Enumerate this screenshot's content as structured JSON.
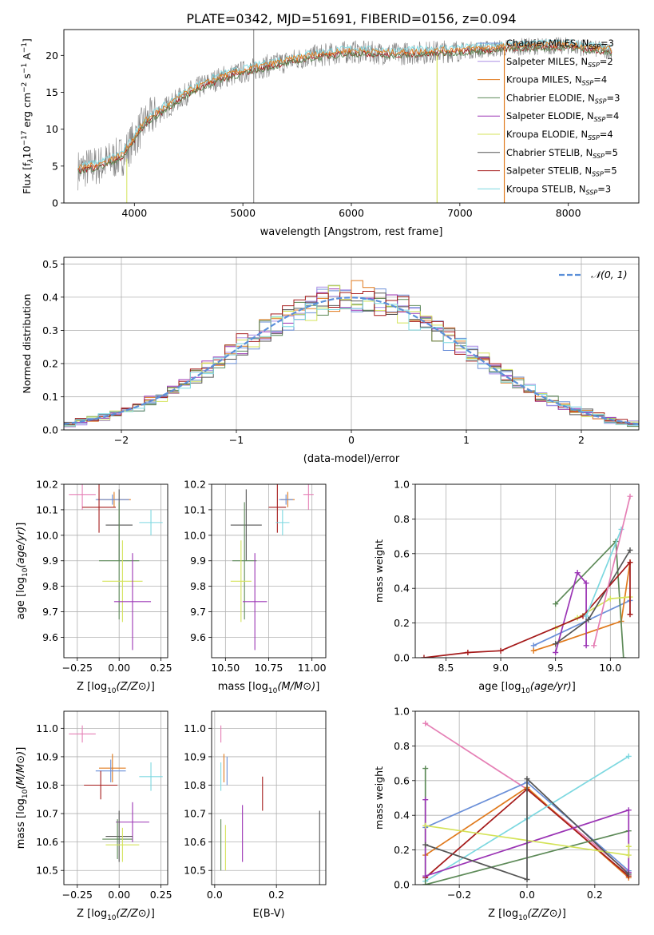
{
  "title": "PLATE=0342, MJD=51691, FIBERID=0156, z=0.094",
  "colors": {
    "Chabrier MILES": "#6a8fd8",
    "Salpeter MILES": "#aa8ee6",
    "Kroupa MILES": "#e07a1d",
    "Chabrier ELODIE": "#5d8a58",
    "Salpeter ELODIE": "#9b35b5",
    "Kroupa ELODIE": "#d4e35a",
    "Chabrier STELIB": "#555555",
    "Salpeter STELIB": "#a51b1b",
    "Kroupa STELIB": "#7dd8e0",
    "Pink": "#e57fb5"
  },
  "legend_spectrum": [
    {
      "label": "Chabrier MILES, N",
      "sub": "SSP",
      "tail": "=3",
      "color_key": "Chabrier MILES"
    },
    {
      "label": "Salpeter MILES, N",
      "sub": "SSP",
      "tail": "=2",
      "color_key": "Salpeter MILES"
    },
    {
      "label": "Kroupa MILES, N",
      "sub": "SSP",
      "tail": "=4",
      "color_key": "Kroupa MILES"
    },
    {
      "label": "Chabrier ELODIE, N",
      "sub": "SSP",
      "tail": "=3",
      "color_key": "Chabrier ELODIE"
    },
    {
      "label": "Salpeter ELODIE, N",
      "sub": "SSP",
      "tail": "=4",
      "color_key": "Salpeter ELODIE"
    },
    {
      "label": "Kroupa ELODIE, N",
      "sub": "SSP",
      "tail": "=4",
      "color_key": "Kroupa ELODIE"
    },
    {
      "label": "Chabrier STELIB, N",
      "sub": "SSP",
      "tail": "=5",
      "color_key": "Chabrier STELIB"
    },
    {
      "label": "Salpeter STELIB, N",
      "sub": "SSP",
      "tail": "=5",
      "color_key": "Salpeter STELIB"
    },
    {
      "label": "Kroupa STELIB, N",
      "sub": "SSP",
      "tail": "=3",
      "color_key": "Kroupa STELIB"
    }
  ],
  "legend_hist": "𝒩(0, 1)",
  "chart_data": [
    {
      "id": "spectrum",
      "type": "line",
      "ylabel_main": "Flux [f",
      "ylabel_sub": "λ",
      "ylabel_mid": "10",
      "ylabel_sup1": "−17",
      "ylabel_mid2": " erg cm",
      "ylabel_sup2": "−2",
      "ylabel_mid3": " s",
      "ylabel_sup3": "−1",
      "ylabel_mid4": " A",
      "ylabel_sup4": "−1",
      "ylabel_end": "]",
      "xlabel": "wavelength [Angstrom, rest frame]",
      "xlim": [
        3350,
        8650
      ],
      "ylim": [
        0,
        23.5
      ],
      "xticks": [
        4000,
        5000,
        6000,
        7000,
        8000
      ],
      "yticks": [
        0,
        5,
        10,
        15,
        20
      ],
      "continuum": [
        [
          3480,
          4.5
        ],
        [
          3700,
          5.2
        ],
        [
          3900,
          6.5
        ],
        [
          4100,
          11
        ],
        [
          4300,
          13
        ],
        [
          4500,
          15
        ],
        [
          4800,
          17
        ],
        [
          5200,
          18.5
        ],
        [
          5600,
          19.8
        ],
        [
          6000,
          20.5
        ],
        [
          6400,
          20.2
        ],
        [
          6800,
          20.5
        ],
        [
          7200,
          20.8
        ],
        [
          7600,
          21.2
        ],
        [
          8000,
          21.3
        ],
        [
          8400,
          20.6
        ]
      ],
      "spikes": [
        [
          5100,
          23.5
        ],
        [
          6790,
          0
        ],
        [
          7410,
          0
        ],
        [
          3980,
          0
        ],
        [
          3920,
          0
        ],
        [
          6075,
          2
        ]
      ]
    },
    {
      "id": "residuals",
      "type": "histogram",
      "ylabel": "Normed distribution",
      "xlabel": "(data-model)/error",
      "xlim": [
        -2.5,
        2.5
      ],
      "ylim": [
        0,
        0.52
      ],
      "xticks": [
        -2,
        -1,
        0,
        1,
        2
      ],
      "yticks": [
        0.0,
        0.1,
        0.2,
        0.3,
        0.4,
        0.5
      ],
      "bin_width": 0.1
    },
    {
      "id": "age_Z",
      "type": "scatter",
      "ylabel": "age  [log10(age/yr)]",
      "xlabel": "Z [log10(Z/Z⊙)]",
      "xlim": [
        -0.33,
        0.29
      ],
      "ylim": [
        9.52,
        10.2
      ],
      "xticks": [
        -0.25,
        0.0,
        0.25
      ],
      "yticks": [
        9.6,
        9.7,
        9.8,
        9.9,
        10.0,
        10.1,
        10.2
      ],
      "points": [
        {
          "x": -0.22,
          "y": 10.16,
          "xerr": 0.08,
          "yerr": 0.06,
          "c": "Pink"
        },
        {
          "x": -0.03,
          "y": 10.14,
          "xerr": 0.1,
          "yerr": 0.03,
          "c": "Kroupa MILES"
        },
        {
          "x": -0.04,
          "y": 10.14,
          "xerr": 0.1,
          "yerr": 0.02,
          "c": "Chabrier MILES"
        },
        {
          "x": -0.12,
          "y": 10.11,
          "xerr": 0.1,
          "yerr": 0.1,
          "c": "Salpeter STELIB"
        },
        {
          "x": 0.19,
          "y": 10.05,
          "xerr": 0.07,
          "yerr": 0.05,
          "c": "Kroupa STELIB"
        },
        {
          "x": 0.0,
          "y": 10.04,
          "xerr": 0.08,
          "yerr": 0.14,
          "c": "Chabrier STELIB"
        },
        {
          "x": 0.0,
          "y": 9.9,
          "xerr": 0.12,
          "yerr": 0.23,
          "c": "Chabrier ELODIE"
        },
        {
          "x": 0.02,
          "y": 9.82,
          "xerr": 0.12,
          "yerr": 0.16,
          "c": "Kroupa ELODIE"
        },
        {
          "x": 0.08,
          "y": 9.74,
          "xerr": 0.11,
          "yerr": 0.19,
          "c": "Salpeter ELODIE"
        }
      ]
    },
    {
      "id": "age_mass",
      "type": "scatter",
      "xlabel": "mass [log10(M/M⊙)]",
      "xlim": [
        10.42,
        11.08
      ],
      "ylim": [
        9.52,
        10.2
      ],
      "xticks": [
        10.5,
        10.75,
        11.0
      ],
      "yticks": [
        9.6,
        9.7,
        9.8,
        9.9,
        10.0,
        10.1,
        10.2
      ],
      "points": [
        {
          "x": 10.98,
          "y": 10.16,
          "xerr": 0.03,
          "yerr": 0.06,
          "c": "Pink"
        },
        {
          "x": 10.86,
          "y": 10.14,
          "xerr": 0.04,
          "yerr": 0.03,
          "c": "Kroupa MILES"
        },
        {
          "x": 10.85,
          "y": 10.14,
          "xerr": 0.04,
          "yerr": 0.02,
          "c": "Chabrier MILES"
        },
        {
          "x": 10.8,
          "y": 10.11,
          "xerr": 0.05,
          "yerr": 0.1,
          "c": "Salpeter STELIB"
        },
        {
          "x": 10.83,
          "y": 10.05,
          "xerr": 0.04,
          "yerr": 0.05,
          "c": "Kroupa STELIB"
        },
        {
          "x": 10.62,
          "y": 10.04,
          "xerr": 0.09,
          "yerr": 0.14,
          "c": "Chabrier STELIB"
        },
        {
          "x": 10.61,
          "y": 9.9,
          "xerr": 0.07,
          "yerr": 0.23,
          "c": "Chabrier ELODIE"
        },
        {
          "x": 10.59,
          "y": 9.82,
          "xerr": 0.06,
          "yerr": 0.16,
          "c": "Kroupa ELODIE"
        },
        {
          "x": 10.67,
          "y": 9.74,
          "xerr": 0.07,
          "yerr": 0.19,
          "c": "Salpeter ELODIE"
        }
      ]
    },
    {
      "id": "mw_age",
      "type": "line",
      "ylabel": "mass weight",
      "xlabel": "age  [log10(age/yr)]",
      "xlim": [
        8.22,
        10.26
      ],
      "ylim": [
        0,
        1.0
      ],
      "xticks": [
        8.5,
        9.0,
        9.5,
        10.0
      ],
      "yticks": [
        0.0,
        0.2,
        0.4,
        0.6,
        0.8,
        1.0
      ],
      "series": [
        {
          "c": "Chabrier MILES",
          "pts": [
            [
              9.3,
              0.07
            ],
            [
              10.18,
              0.33
            ]
          ]
        },
        {
          "c": "Kroupa MILES",
          "pts": [
            [
              9.3,
              0.04
            ],
            [
              9.5,
              0.08
            ],
            [
              10.1,
              0.21
            ],
            [
              10.18,
              0.55
            ]
          ]
        },
        {
          "c": "Chabrier ELODIE",
          "pts": [
            [
              9.5,
              0.31
            ],
            [
              10.05,
              0.67
            ],
            [
              10.12,
              0.0
            ]
          ]
        },
        {
          "c": "Salpeter ELODIE",
          "pts": [
            [
              9.5,
              0.03
            ],
            [
              9.7,
              0.49
            ],
            [
              9.78,
              0.43
            ],
            [
              9.78,
              0.07
            ]
          ]
        },
        {
          "c": "Kroupa ELODIE",
          "pts": [
            [
              9.5,
              0.17
            ],
            [
              9.7,
              0.23
            ],
            [
              10.0,
              0.34
            ],
            [
              10.18,
              0.35
            ]
          ]
        },
        {
          "c": "Chabrier STELIB",
          "pts": [
            [
              9.5,
              0.08
            ],
            [
              9.8,
              0.22
            ],
            [
              10.18,
              0.62
            ]
          ]
        },
        {
          "c": "Salpeter STELIB",
          "pts": [
            [
              8.3,
              0.0
            ],
            [
              8.7,
              0.03
            ],
            [
              9.0,
              0.04
            ],
            [
              9.75,
              0.24
            ],
            [
              10.18,
              0.55
            ],
            [
              10.18,
              0.25
            ]
          ]
        },
        {
          "c": "Kroupa STELIB",
          "pts": [
            [
              9.78,
              0.24
            ],
            [
              10.1,
              0.74
            ]
          ]
        },
        {
          "c": "Pink",
          "pts": [
            [
              9.85,
              0.07
            ],
            [
              10.18,
              0.93
            ]
          ]
        }
      ]
    },
    {
      "id": "mass_Z",
      "type": "scatter",
      "ylabel": "mass [log10(M/M⊙)]",
      "xlabel": "Z [log10(Z/Z⊙)]",
      "xlim": [
        -0.33,
        0.29
      ],
      "ylim": [
        10.45,
        11.06
      ],
      "xticks": [
        -0.25,
        0.0,
        0.25
      ],
      "yticks": [
        10.5,
        10.6,
        10.7,
        10.8,
        10.9,
        11.0
      ],
      "points": [
        {
          "x": -0.22,
          "y": 10.98,
          "xerr": 0.08,
          "yerr": 0.03,
          "c": "Pink"
        },
        {
          "x": -0.04,
          "y": 10.86,
          "xerr": 0.08,
          "yerr": 0.05,
          "c": "Kroupa MILES"
        },
        {
          "x": -0.05,
          "y": 10.85,
          "xerr": 0.09,
          "yerr": 0.04,
          "c": "Chabrier MILES"
        },
        {
          "x": -0.11,
          "y": 10.8,
          "xerr": 0.1,
          "yerr": 0.05,
          "c": "Salpeter STELIB"
        },
        {
          "x": 0.19,
          "y": 10.83,
          "xerr": 0.07,
          "yerr": 0.05,
          "c": "Kroupa STELIB"
        },
        {
          "x": 0.08,
          "y": 10.67,
          "xerr": 0.1,
          "yerr": 0.07,
          "c": "Salpeter ELODIE"
        },
        {
          "x": 0.0,
          "y": 10.62,
          "xerr": 0.08,
          "yerr": 0.09,
          "c": "Chabrier STELIB"
        },
        {
          "x": -0.01,
          "y": 10.61,
          "xerr": 0.09,
          "yerr": 0.07,
          "c": "Chabrier ELODIE"
        },
        {
          "x": 0.02,
          "y": 10.59,
          "xerr": 0.1,
          "yerr": 0.06,
          "c": "Kroupa ELODIE"
        }
      ]
    },
    {
      "id": "mass_ebv",
      "type": "scatter",
      "xlabel": "E(B-V)",
      "xlim": [
        -0.01,
        0.36
      ],
      "ylim": [
        10.45,
        11.06
      ],
      "xticks": [
        0.0,
        0.2
      ],
      "yticks": [
        10.5,
        10.6,
        10.7,
        10.8,
        10.9,
        11.0
      ],
      "points": [
        {
          "x": 0.02,
          "y": 10.98,
          "xerr": 0,
          "yerr": 0.03,
          "c": "Pink"
        },
        {
          "x": 0.03,
          "y": 10.86,
          "xerr": 0,
          "yerr": 0.05,
          "c": "Kroupa MILES"
        },
        {
          "x": 0.04,
          "y": 10.85,
          "xerr": 0,
          "yerr": 0.05,
          "c": "Chabrier MILES"
        },
        {
          "x": 0.02,
          "y": 10.83,
          "xerr": 0,
          "yerr": 0.05,
          "c": "Kroupa STELIB"
        },
        {
          "x": 0.155,
          "y": 10.77,
          "xerr": 0,
          "yerr": 0.06,
          "c": "Salpeter STELIB"
        },
        {
          "x": 0.09,
          "y": 10.63,
          "xerr": 0,
          "yerr": 0.1,
          "c": "Salpeter ELODIE"
        },
        {
          "x": 0.02,
          "y": 10.59,
          "xerr": 0,
          "yerr": 0.09,
          "c": "Chabrier ELODIE"
        },
        {
          "x": 0.035,
          "y": 10.58,
          "xerr": 0,
          "yerr": 0.08,
          "c": "Kroupa ELODIE"
        },
        {
          "x": 0.34,
          "y": 10.57,
          "xerr": 0,
          "yerr": 0.14,
          "c": "Chabrier STELIB"
        }
      ]
    },
    {
      "id": "mw_Z",
      "type": "line",
      "ylabel": "mass weight",
      "xlabel": "Z [log10(Z/Z⊙)]",
      "xlim": [
        -0.33,
        0.33
      ],
      "ylim": [
        0,
        1.0
      ],
      "xticks": [
        -0.2,
        0.0,
        0.2
      ],
      "yticks": [
        0.0,
        0.2,
        0.4,
        0.6,
        0.8,
        1.0
      ],
      "series": [
        {
          "c": "Pink",
          "pts": [
            [
              -0.3,
              0.93
            ],
            [
              0.0,
              0.55
            ],
            [
              0.3,
              0.07
            ]
          ]
        },
        {
          "c": "Chabrier MILES",
          "pts": [
            [
              -0.3,
              0.33
            ],
            [
              0.0,
              0.59
            ],
            [
              0.3,
              0.08
            ]
          ]
        },
        {
          "c": "Kroupa MILES",
          "pts": [
            [
              -0.3,
              0.17
            ],
            [
              0.0,
              0.56
            ],
            [
              0.3,
              0.04
            ]
          ]
        },
        {
          "c": "Salpeter STELIB",
          "pts": [
            [
              -0.3,
              0.04
            ],
            [
              0.0,
              0.55
            ],
            [
              0.3,
              0.05
            ]
          ]
        },
        {
          "c": "Kroupa STELIB",
          "pts": [
            [
              -0.3,
              0.02
            ],
            [
              0.0,
              0.38
            ],
            [
              0.3,
              0.74
            ]
          ]
        },
        {
          "c": "Chabrier ELODIE",
          "pts": [
            [
              -0.3,
              0.67
            ],
            [
              -0.3,
              0.0
            ],
            [
              0.3,
              0.31
            ]
          ]
        },
        {
          "c": "Salpeter ELODIE",
          "pts": [
            [
              -0.3,
              0.49
            ],
            [
              -0.3,
              0.05
            ],
            [
              0.3,
              0.43
            ],
            [
              0.3,
              0.07
            ]
          ]
        },
        {
          "c": "Kroupa ELODIE",
          "pts": [
            [
              -0.3,
              0.34
            ],
            [
              0.3,
              0.17
            ],
            [
              0.3,
              0.22
            ]
          ]
        },
        {
          "c": "Chabrier STELIB",
          "pts": [
            [
              -0.3,
              0.23
            ],
            [
              0.0,
              0.03
            ],
            [
              0.0,
              0.61
            ],
            [
              0.3,
              0.06
            ]
          ]
        }
      ]
    }
  ]
}
